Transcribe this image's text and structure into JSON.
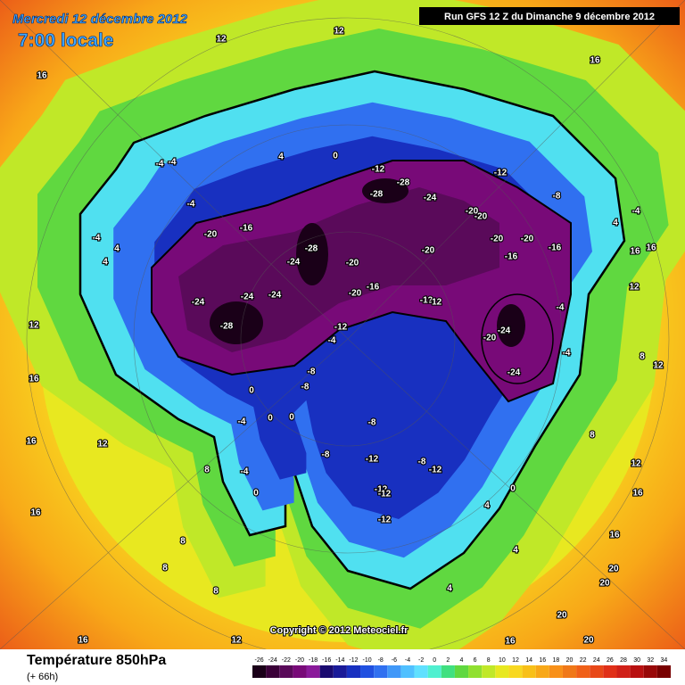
{
  "header": {
    "date": "Mercredi 12 décembre 2012",
    "time": "7:00 locale",
    "run": "Run GFS 12 Z du Dimanche 9 décembre 2012"
  },
  "copyright": "Copyright © 2012 Meteociel.fr",
  "footer": {
    "title": "Température 850hPa",
    "lead": "(+ 66h)"
  },
  "legend": {
    "ticks": [
      -26,
      -24,
      -22,
      -20,
      -18,
      -16,
      -14,
      -12,
      -10,
      -8,
      -6,
      -4,
      -2,
      0,
      2,
      4,
      6,
      8,
      10,
      12,
      14,
      16,
      18,
      20,
      22,
      24,
      26,
      28,
      30,
      32,
      34
    ],
    "colors": [
      "#1a0018",
      "#3a0038",
      "#5a0a5a",
      "#780a78",
      "#8a1a9a",
      "#1a0a70",
      "#1a1a98",
      "#1830c0",
      "#2050e0",
      "#3070f0",
      "#4098f8",
      "#50c0ff",
      "#60e0ff",
      "#50f0d0",
      "#40e080",
      "#60d840",
      "#90e030",
      "#c0e828",
      "#e8e820",
      "#f8d820",
      "#f8c018",
      "#f8a818",
      "#f89018",
      "#f07818",
      "#f06018",
      "#e84818",
      "#e03018",
      "#d02018",
      "#b81010",
      "#980808",
      "#780000"
    ]
  },
  "map_labels": [
    -28,
    -28,
    -24,
    -12,
    -12,
    -8,
    -20,
    -20,
    -20,
    -20,
    -16,
    -16,
    -20,
    -28,
    -24,
    -20,
    -20,
    -16,
    -24,
    -24,
    -24,
    -28,
    -20,
    -16,
    -12,
    -12,
    -24,
    -20,
    -24,
    -4,
    -4,
    -4,
    -4,
    -4,
    4,
    0,
    -12,
    -4,
    -8,
    -8,
    0,
    0,
    0,
    -4,
    -8,
    -8,
    -12,
    -12,
    -8,
    -12,
    -12,
    -12,
    0,
    -4,
    0,
    4,
    4,
    8,
    12,
    16,
    16,
    12,
    16,
    8,
    8,
    8,
    12,
    16,
    16,
    12,
    12,
    16,
    12,
    16,
    16,
    8,
    12,
    8,
    12,
    16,
    16,
    20,
    20,
    20,
    20,
    16,
    4,
    -4,
    4,
    -4,
    4,
    4
  ]
}
